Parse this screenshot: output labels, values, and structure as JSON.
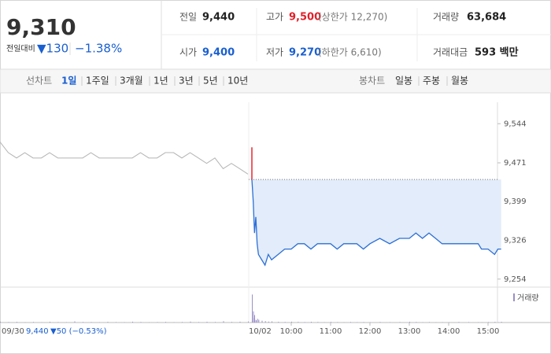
{
  "quote": {
    "price": "9,310",
    "change_label": "전일대비",
    "change": "▼130",
    "change_rate": "−1.38%",
    "color": "#1a5fd0"
  },
  "summary": [
    [
      {
        "label": "전일",
        "value": "9,440",
        "color": "#222"
      },
      {
        "label": "고가",
        "value": "9,500",
        "color": "#e0202a",
        "note": "(상한가 12,270)"
      },
      {
        "label": "거래량",
        "value": "63,684",
        "color": "#222"
      }
    ],
    [
      {
        "label": "시가",
        "value": "9,400",
        "color": "#1a5fd0"
      },
      {
        "label": "저가",
        "value": "9,270",
        "color": "#1a5fd0",
        "note": "(하한가 6,610)"
      },
      {
        "label": "거래대금",
        "value": "593 백만",
        "color": "#222"
      }
    ]
  ],
  "tabs": {
    "line_label": "선차트",
    "line": [
      "1일",
      "1주일",
      "3개월",
      "1년",
      "3년",
      "5년",
      "10년"
    ],
    "selected": 0,
    "candle_label": "봉차트",
    "candle": [
      "일봉",
      "주봉",
      "월봉"
    ]
  },
  "chart_data": {
    "type": "line",
    "prev_day": {
      "label": "09/30",
      "close": "9,440",
      "change": "▼50 (−0.53%)",
      "color": "#b4b4b4",
      "values": [
        9510,
        9490,
        9480,
        9490,
        9480,
        9480,
        9490,
        9480,
        9480,
        9480,
        9480,
        9490,
        9480,
        9480,
        9480,
        9480,
        9480,
        9490,
        9480,
        9480,
        9490,
        9490,
        9480,
        9490,
        9480,
        9470,
        9480,
        9460,
        9470,
        9460,
        9450
      ],
      "volume": [
        900,
        500,
        700,
        400,
        600,
        300,
        800,
        500,
        400,
        1200,
        600,
        500,
        300,
        700,
        500,
        400,
        900,
        600,
        300,
        500,
        700,
        400,
        600,
        1000,
        500,
        800,
        600,
        1400,
        700,
        900,
        1100
      ]
    },
    "session_label": "10/02",
    "reference": 9440,
    "up_color": "#e8262d",
    "series": [
      {
        "color": "#2c6fd6",
        "area_color": "#e2ecfa",
        "x": [
          "09:00",
          "09:00",
          "09:00",
          "09:02",
          "09:04",
          "09:06",
          "09:08",
          "09:10",
          "09:15",
          "09:20",
          "09:25",
          "09:30",
          "09:40",
          "09:50",
          "10:00",
          "10:10",
          "10:20",
          "10:30",
          "10:40",
          "10:50",
          "11:00",
          "11:10",
          "11:20",
          "11:30",
          "11:40",
          "11:50",
          "12:00",
          "12:15",
          "12:30",
          "12:45",
          "13:00",
          "13:10",
          "13:20",
          "13:30",
          "13:40",
          "13:50",
          "14:00",
          "14:15",
          "14:30",
          "14:45",
          "14:50",
          "15:00",
          "15:10",
          "15:15",
          "15:20"
        ],
        "values": [
          9440,
          9500,
          9440,
          9400,
          9340,
          9370,
          9320,
          9300,
          9290,
          9280,
          9300,
          9290,
          9300,
          9310,
          9310,
          9320,
          9320,
          9310,
          9320,
          9320,
          9320,
          9310,
          9320,
          9320,
          9320,
          9310,
          9320,
          9330,
          9320,
          9330,
          9330,
          9340,
          9330,
          9340,
          9330,
          9320,
          9320,
          9320,
          9320,
          9320,
          9310,
          9310,
          9300,
          9310,
          9310
        ],
        "volume": [
          30000,
          12000,
          8000,
          5000,
          3000,
          2500,
          4000,
          3000,
          2000,
          1500,
          1000,
          1200,
          800,
          600,
          900,
          700,
          500,
          800,
          600,
          400,
          700,
          500,
          300,
          600,
          400,
          500,
          300,
          600,
          400,
          500,
          800,
          600,
          400,
          500,
          300,
          400,
          300,
          600,
          500,
          400,
          300,
          500,
          700,
          400,
          800
        ]
      }
    ],
    "volume_legend": "거래량",
    "volume_color": "#9b8fc7",
    "vlim": [
      0,
      32000
    ],
    "ylim": [
      9239,
      9562
    ],
    "yticks": [
      {
        "value": 9544,
        "label": "9,544"
      },
      {
        "value": 9471,
        "label": "9,471"
      },
      {
        "value": 9399,
        "label": "9,399"
      },
      {
        "value": 9326,
        "label": "9,326"
      },
      {
        "value": 9254,
        "label": "9,254"
      }
    ],
    "xticks": [
      "10:00",
      "11:00",
      "12:00",
      "13:00",
      "14:00",
      "15:00"
    ]
  }
}
